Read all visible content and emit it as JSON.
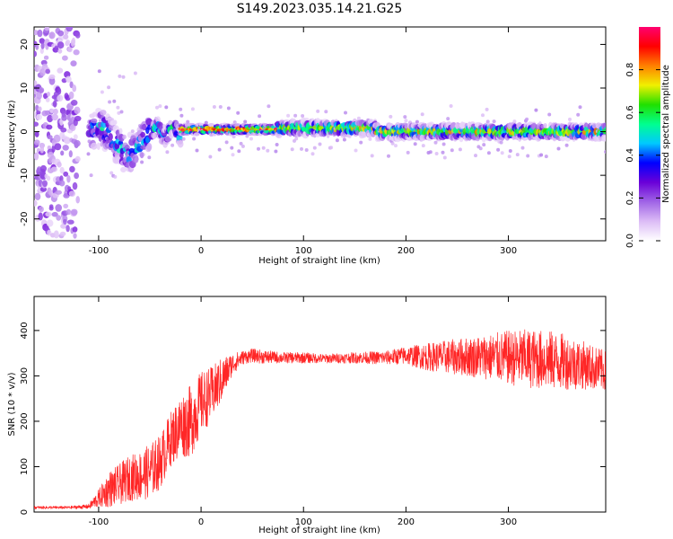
{
  "title": "S149.2023.035.14.21.G25",
  "chart_data": [
    {
      "type": "heatmap",
      "xlabel": "Height of straight line (km)",
      "ylabel": "Frequency (Hz)",
      "xlim": [
        -163,
        395
      ],
      "ylim": [
        -25,
        24
      ],
      "xticks": [
        -100,
        0,
        100,
        200,
        300
      ],
      "yticks": [
        -20,
        -10,
        0,
        10,
        20
      ],
      "grid": false,
      "colorbar": {
        "label": "Normalized spectral amplitude",
        "range": [
          0,
          1
        ],
        "ticks": [
          "0.0",
          "0.2",
          "0.4",
          "0.6",
          "0.8"
        ],
        "colormap": [
          "#ffffff",
          "#dcbcf6",
          "#a064e6",
          "#6a00d8",
          "#0000ff",
          "#00c8ff",
          "#00ff90",
          "#20e000",
          "#f0f000",
          "#ff8000",
          "#ff0000",
          "#ff0070"
        ]
      },
      "segments": [
        {
          "x_range": [
            -163,
            -120
          ],
          "center_hz": 0,
          "halfwidth_hz": 24,
          "peak": 0.25,
          "pattern": "scattered noise"
        },
        {
          "x_range": [
            -110,
            -50
          ],
          "center_hz": 0,
          "halfwidth_hz": 6,
          "peak": 0.4,
          "pattern": "broad blobs"
        },
        {
          "x_range": [
            -48,
            -20
          ],
          "center_hz": 0,
          "halfwidth_hz": 2,
          "peak": 0.55,
          "pattern": "wavy"
        },
        {
          "x_range": [
            -20,
            75
          ],
          "center_hz": 0.5,
          "halfwidth_hz": 1.2,
          "peak": 1.0,
          "pattern": "narrow line"
        },
        {
          "x_range": [
            75,
            170
          ],
          "center_hz": 0.8,
          "halfwidth_hz": 1.6,
          "peak": 0.8,
          "pattern": "line"
        },
        {
          "x_range": [
            170,
            395
          ],
          "center_hz": 0,
          "halfwidth_hz": 1.6,
          "peak": 0.8,
          "pattern": "line"
        }
      ]
    },
    {
      "type": "line",
      "xlabel": "Height of straight line (km)",
      "ylabel": "SNR (10 * v/v)",
      "xlim": [
        -163,
        395
      ],
      "ylim": [
        0,
        475
      ],
      "xticks": [
        -100,
        0,
        100,
        200,
        300
      ],
      "yticks": [
        0,
        100,
        200,
        300,
        400
      ],
      "grid": false,
      "series": [
        {
          "color": "#ff0000",
          "x": [
            -163,
            -150,
            -130,
            -110,
            -100,
            -90,
            -80,
            -70,
            -60,
            -50,
            -40,
            -30,
            -20,
            -10,
            0,
            10,
            20,
            30,
            40,
            50,
            60,
            80,
            100,
            120,
            150,
            180,
            200,
            220,
            250,
            280,
            300,
            320,
            340,
            360,
            380,
            395
          ],
          "y": [
            10,
            10,
            10,
            12,
            30,
            50,
            60,
            75,
            80,
            90,
            110,
            160,
            190,
            200,
            240,
            260,
            290,
            325,
            340,
            345,
            342,
            340,
            340,
            338,
            340,
            340,
            345,
            342,
            342,
            342,
            340,
            338,
            335,
            330,
            320,
            310
          ],
          "spread": [
            3,
            3,
            3,
            5,
            20,
            40,
            45,
            50,
            55,
            60,
            60,
            60,
            70,
            80,
            70,
            60,
            50,
            25,
            15,
            15,
            15,
            12,
            12,
            10,
            12,
            15,
            20,
            30,
            40,
            50,
            60,
            65,
            65,
            60,
            50,
            45
          ]
        }
      ]
    }
  ]
}
